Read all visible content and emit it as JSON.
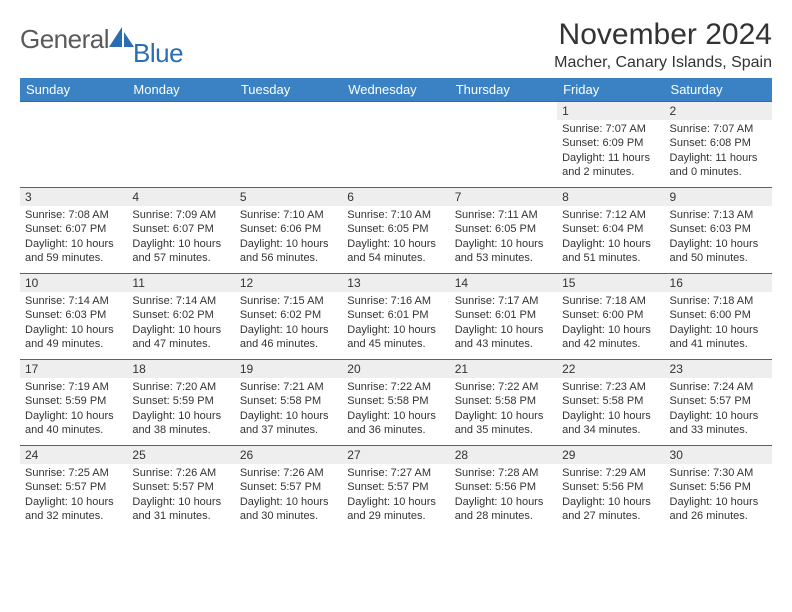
{
  "logo": {
    "part1": "General",
    "part2": "Blue"
  },
  "title": "November 2024",
  "location": "Macher, Canary Islands, Spain",
  "colors": {
    "header_bg": "#3a82c4",
    "header_text": "#ffffff",
    "daynum_bg": "#eeeeee",
    "row_border": "#2a6db0",
    "text": "#333333",
    "logo_gray": "#5a5a5a",
    "logo_blue": "#2a6db0",
    "page_bg": "#ffffff"
  },
  "typography": {
    "title_fontsize": 30,
    "location_fontsize": 16,
    "dayheader_fontsize": 13,
    "daynum_fontsize": 12,
    "body_fontsize": 11
  },
  "day_headers": [
    "Sunday",
    "Monday",
    "Tuesday",
    "Wednesday",
    "Thursday",
    "Friday",
    "Saturday"
  ],
  "weeks": [
    [
      null,
      null,
      null,
      null,
      null,
      {
        "n": "1",
        "sunrise": "7:07 AM",
        "sunset": "6:09 PM",
        "daylight": "11 hours and 2 minutes."
      },
      {
        "n": "2",
        "sunrise": "7:07 AM",
        "sunset": "6:08 PM",
        "daylight": "11 hours and 0 minutes."
      }
    ],
    [
      {
        "n": "3",
        "sunrise": "7:08 AM",
        "sunset": "6:07 PM",
        "daylight": "10 hours and 59 minutes."
      },
      {
        "n": "4",
        "sunrise": "7:09 AM",
        "sunset": "6:07 PM",
        "daylight": "10 hours and 57 minutes."
      },
      {
        "n": "5",
        "sunrise": "7:10 AM",
        "sunset": "6:06 PM",
        "daylight": "10 hours and 56 minutes."
      },
      {
        "n": "6",
        "sunrise": "7:10 AM",
        "sunset": "6:05 PM",
        "daylight": "10 hours and 54 minutes."
      },
      {
        "n": "7",
        "sunrise": "7:11 AM",
        "sunset": "6:05 PM",
        "daylight": "10 hours and 53 minutes."
      },
      {
        "n": "8",
        "sunrise": "7:12 AM",
        "sunset": "6:04 PM",
        "daylight": "10 hours and 51 minutes."
      },
      {
        "n": "9",
        "sunrise": "7:13 AM",
        "sunset": "6:03 PM",
        "daylight": "10 hours and 50 minutes."
      }
    ],
    [
      {
        "n": "10",
        "sunrise": "7:14 AM",
        "sunset": "6:03 PM",
        "daylight": "10 hours and 49 minutes."
      },
      {
        "n": "11",
        "sunrise": "7:14 AM",
        "sunset": "6:02 PM",
        "daylight": "10 hours and 47 minutes."
      },
      {
        "n": "12",
        "sunrise": "7:15 AM",
        "sunset": "6:02 PM",
        "daylight": "10 hours and 46 minutes."
      },
      {
        "n": "13",
        "sunrise": "7:16 AM",
        "sunset": "6:01 PM",
        "daylight": "10 hours and 45 minutes."
      },
      {
        "n": "14",
        "sunrise": "7:17 AM",
        "sunset": "6:01 PM",
        "daylight": "10 hours and 43 minutes."
      },
      {
        "n": "15",
        "sunrise": "7:18 AM",
        "sunset": "6:00 PM",
        "daylight": "10 hours and 42 minutes."
      },
      {
        "n": "16",
        "sunrise": "7:18 AM",
        "sunset": "6:00 PM",
        "daylight": "10 hours and 41 minutes."
      }
    ],
    [
      {
        "n": "17",
        "sunrise": "7:19 AM",
        "sunset": "5:59 PM",
        "daylight": "10 hours and 40 minutes."
      },
      {
        "n": "18",
        "sunrise": "7:20 AM",
        "sunset": "5:59 PM",
        "daylight": "10 hours and 38 minutes."
      },
      {
        "n": "19",
        "sunrise": "7:21 AM",
        "sunset": "5:58 PM",
        "daylight": "10 hours and 37 minutes."
      },
      {
        "n": "20",
        "sunrise": "7:22 AM",
        "sunset": "5:58 PM",
        "daylight": "10 hours and 36 minutes."
      },
      {
        "n": "21",
        "sunrise": "7:22 AM",
        "sunset": "5:58 PM",
        "daylight": "10 hours and 35 minutes."
      },
      {
        "n": "22",
        "sunrise": "7:23 AM",
        "sunset": "5:58 PM",
        "daylight": "10 hours and 34 minutes."
      },
      {
        "n": "23",
        "sunrise": "7:24 AM",
        "sunset": "5:57 PM",
        "daylight": "10 hours and 33 minutes."
      }
    ],
    [
      {
        "n": "24",
        "sunrise": "7:25 AM",
        "sunset": "5:57 PM",
        "daylight": "10 hours and 32 minutes."
      },
      {
        "n": "25",
        "sunrise": "7:26 AM",
        "sunset": "5:57 PM",
        "daylight": "10 hours and 31 minutes."
      },
      {
        "n": "26",
        "sunrise": "7:26 AM",
        "sunset": "5:57 PM",
        "daylight": "10 hours and 30 minutes."
      },
      {
        "n": "27",
        "sunrise": "7:27 AM",
        "sunset": "5:57 PM",
        "daylight": "10 hours and 29 minutes."
      },
      {
        "n": "28",
        "sunrise": "7:28 AM",
        "sunset": "5:56 PM",
        "daylight": "10 hours and 28 minutes."
      },
      {
        "n": "29",
        "sunrise": "7:29 AM",
        "sunset": "5:56 PM",
        "daylight": "10 hours and 27 minutes."
      },
      {
        "n": "30",
        "sunrise": "7:30 AM",
        "sunset": "5:56 PM",
        "daylight": "10 hours and 26 minutes."
      }
    ]
  ],
  "labels": {
    "sunrise": "Sunrise: ",
    "sunset": "Sunset: ",
    "daylight": "Daylight: "
  }
}
